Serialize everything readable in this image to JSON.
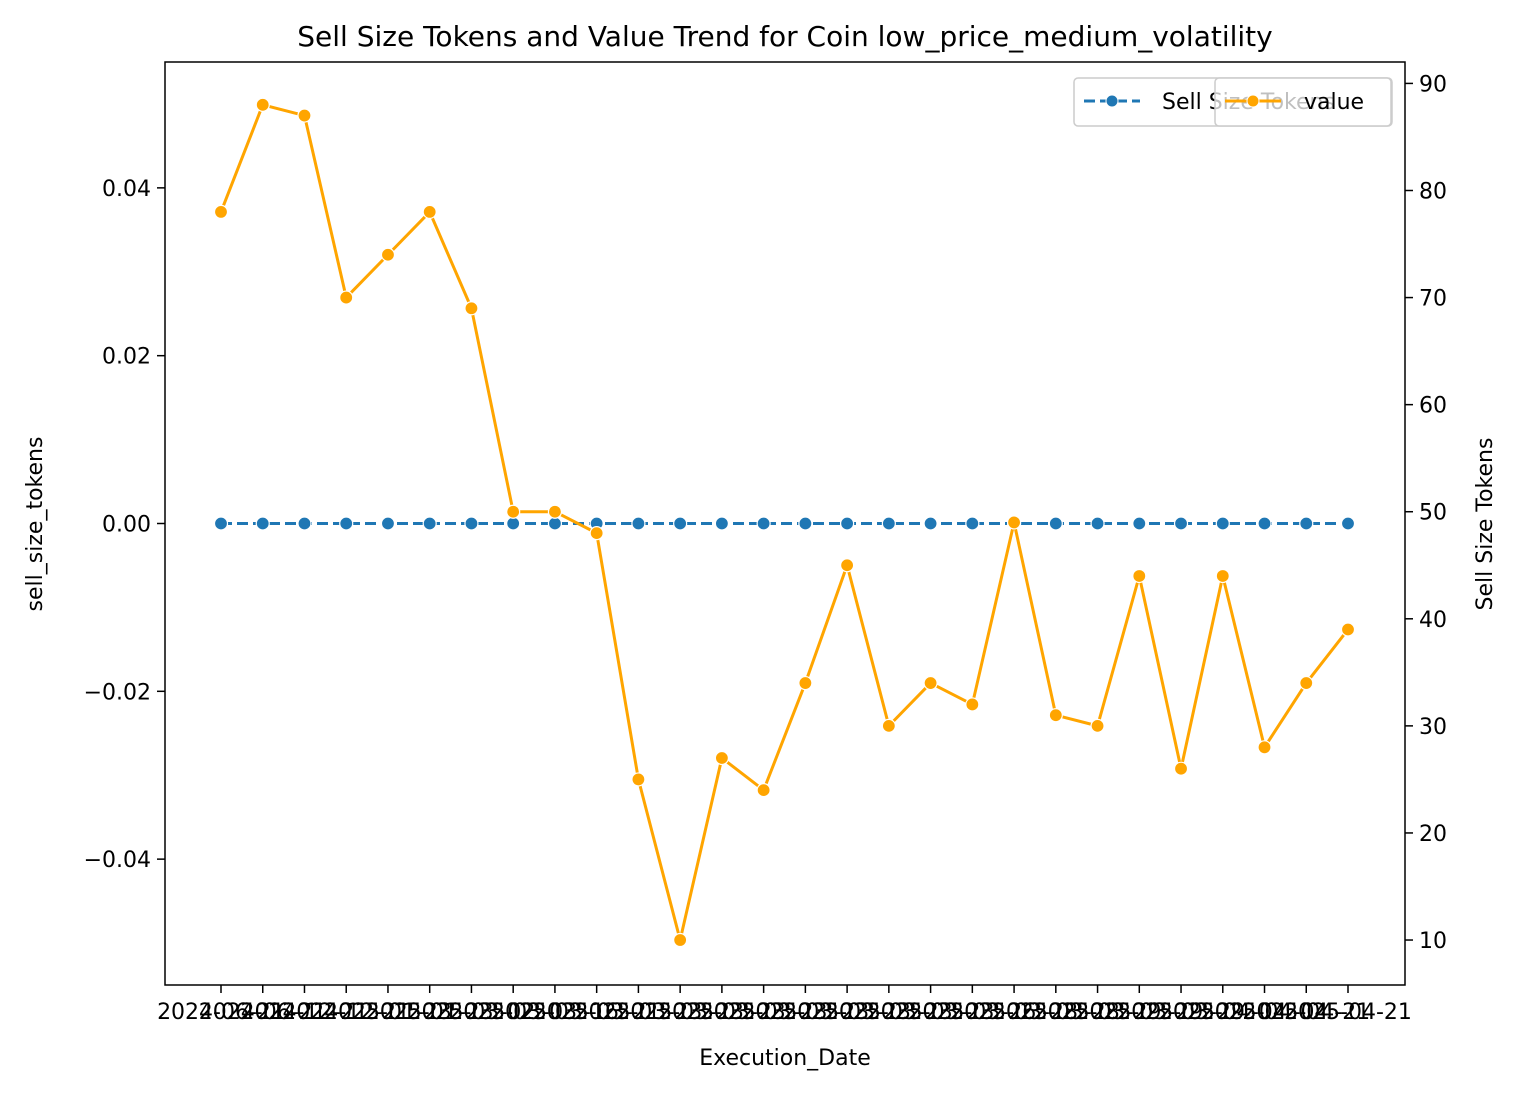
{
  "chart_data": {
    "type": "line",
    "title": "Sell Size Tokens and Value Trend for Coin low_price_medium_volatility",
    "xlabel": "Execution_Date",
    "ylabel_left": "sell_size_tokens",
    "ylabel_right": "Sell Size Tokens",
    "x_tick_labels": [
      "2024-06-21",
      "2024-06-21",
      "2024-12-21",
      "2024-12-21",
      "2025-01-23",
      "2025-01-23",
      "2025-03-02",
      "2025-03-03",
      "2025-03-16",
      "2025-03-21",
      "2025-03-23",
      "2025-03-23",
      "2025-03-23",
      "2025-03-23",
      "2025-03-23",
      "2025-03-23",
      "2025-03-23",
      "2025-03-23",
      "2025-03-26",
      "2025-03-28",
      "2025-03-28",
      "2025-03-29",
      "2025-03-29",
      "2025-03-29",
      "2025-04-04",
      "2025-04-04",
      "2025-04-21",
      "2025-04-21"
    ],
    "left_axis": {
      "ylim": [
        -0.055,
        0.055
      ],
      "ticks": [
        -0.04,
        -0.02,
        0.0,
        0.02,
        0.04
      ],
      "tick_labels": [
        "−0.04",
        "−0.02",
        "0.00",
        "0.02",
        "0.04"
      ]
    },
    "right_axis": {
      "ylim": [
        5.8,
        92.0
      ],
      "ticks": [
        10,
        20,
        30,
        40,
        50,
        60,
        70,
        80,
        90
      ],
      "tick_labels": [
        "10",
        "20",
        "30",
        "40",
        "50",
        "60",
        "70",
        "80",
        "90"
      ]
    },
    "series": [
      {
        "name": "Sell Size Tokens",
        "axis": "left",
        "color": "#1f77b4",
        "style": "dashed-with-markers",
        "values": [
          0,
          0,
          0,
          0,
          0,
          0,
          0,
          0,
          0,
          0,
          0,
          0,
          0,
          0,
          0,
          0,
          0,
          0,
          0,
          0,
          0,
          0,
          0,
          0,
          0,
          0,
          0,
          0
        ]
      },
      {
        "name": "value",
        "axis": "right",
        "color": "#ffa500",
        "style": "solid-with-markers",
        "values": [
          78,
          88,
          87,
          70,
          74,
          78,
          69,
          50,
          50,
          48,
          25,
          10,
          27,
          24,
          34,
          45,
          30,
          34,
          32,
          49,
          31,
          30,
          44,
          26,
          44,
          28,
          34,
          39
        ]
      }
    ],
    "legend_placement": "top-right",
    "grid": false
  }
}
